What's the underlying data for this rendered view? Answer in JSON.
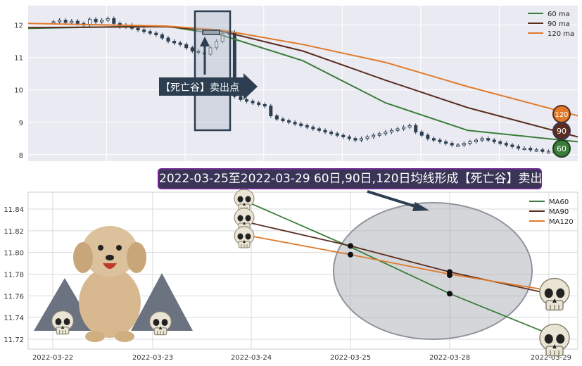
{
  "banner": "2022-03-25至2022-03-29 60日,90日,120日均线形成【死亡谷】卖出点",
  "callout": "【死亡谷】卖出点",
  "colors": {
    "ma60": "#3a7d3a",
    "ma90": "#5a2e1f",
    "ma120": "#e07a2a",
    "panel": "#eaeaf2",
    "candle": "#2c3e50"
  },
  "chart_data": [
    {
      "type": "line",
      "title": "",
      "legend": [
        "60 ma",
        "90 ma",
        "120 ma"
      ],
      "legend_position": "top-right",
      "ylim": [
        7.8,
        12.6
      ],
      "y_ticks": [
        8,
        9,
        10,
        11,
        12
      ],
      "grid": true,
      "badges": [
        "120",
        "90",
        "60"
      ],
      "series": [
        {
          "name": "60 ma",
          "x": [
            0,
            0.25,
            0.35,
            0.5,
            0.65,
            0.8,
            1
          ],
          "values": [
            11.9,
            11.97,
            11.7,
            10.9,
            9.6,
            8.75,
            8.4
          ]
        },
        {
          "name": "90 ma",
          "x": [
            0,
            0.25,
            0.35,
            0.5,
            0.65,
            0.8,
            1
          ],
          "values": [
            11.92,
            11.95,
            11.82,
            11.2,
            10.3,
            9.45,
            8.55
          ]
        },
        {
          "name": "120 ma",
          "x": [
            0,
            0.25,
            0.35,
            0.5,
            0.65,
            0.8,
            1
          ],
          "values": [
            12.05,
            11.97,
            11.85,
            11.4,
            10.85,
            10.1,
            9.2
          ]
        }
      ],
      "candles_close": [
        12.1,
        12.15,
        12.08,
        12.12,
        12.05,
        12.0,
        12.18,
        12.1,
        12.15,
        12.2,
        12.05,
        11.95,
        12.0,
        11.9,
        11.85,
        11.8,
        11.75,
        11.7,
        11.6,
        11.5,
        11.45,
        11.4,
        11.3,
        11.2,
        11.15,
        11.1,
        11.3,
        11.5,
        11.75,
        11.78,
        9.8,
        9.7,
        9.65,
        9.6,
        9.55,
        9.5,
        9.2,
        9.1,
        9.05,
        9.0,
        8.95,
        8.9,
        8.85,
        8.8,
        8.75,
        8.7,
        8.65,
        8.6,
        8.55,
        8.5,
        8.45,
        8.5,
        8.55,
        8.6,
        8.65,
        8.7,
        8.75,
        8.8,
        8.85,
        8.9,
        8.7,
        8.6,
        8.5,
        8.45,
        8.4,
        8.35,
        8.3,
        8.3,
        8.35,
        8.4,
        8.45,
        8.5,
        8.45,
        8.4,
        8.35,
        8.3,
        8.25,
        8.2,
        8.2,
        8.15,
        8.15,
        8.1,
        8.1,
        8.08
      ]
    },
    {
      "type": "line",
      "title": "",
      "legend": [
        "MA60",
        "MA90",
        "MA120"
      ],
      "legend_position": "top-right",
      "ylim": [
        11.712,
        11.864
      ],
      "y_ticks": [
        11.72,
        11.74,
        11.76,
        11.78,
        11.8,
        11.82,
        11.84
      ],
      "x_labels": [
        "2022-03-22",
        "2022-03-23",
        "2022-03-24",
        "2022-03-25",
        "2022-03-28",
        "2022-03-29"
      ],
      "grid": true,
      "series": [
        {
          "name": "MA60",
          "x": [
            2,
            3,
            4,
            5
          ],
          "values": [
            11.845,
            11.805,
            11.762,
            11.725
          ]
        },
        {
          "name": "MA90",
          "x": [
            2,
            3,
            4,
            5
          ],
          "values": [
            11.827,
            11.806,
            11.782,
            11.762
          ]
        },
        {
          "name": "MA120",
          "x": [
            2,
            3,
            4,
            5
          ],
          "values": [
            11.815,
            11.798,
            11.78,
            11.765
          ]
        }
      ],
      "highlight_points": [
        [
          3,
          11.806
        ],
        [
          3,
          11.798
        ],
        [
          4,
          11.782
        ],
        [
          4,
          11.779
        ],
        [
          4,
          11.762
        ]
      ]
    }
  ]
}
